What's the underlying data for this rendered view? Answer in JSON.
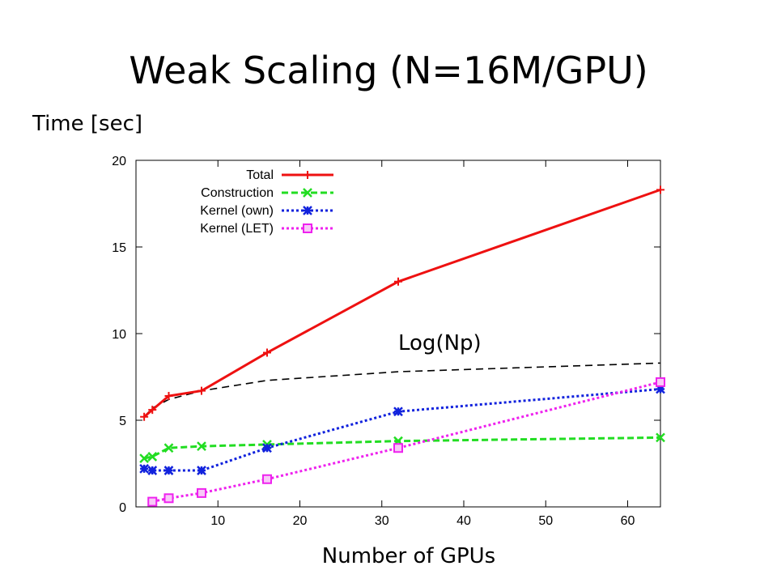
{
  "title": "Weak Scaling (N=16M/GPU)",
  "chart_data": {
    "type": "line",
    "ylabel": "Time [sec]",
    "xlabel": "Number of GPUs",
    "xlim": [
      0,
      64
    ],
    "ylim": [
      0,
      20
    ],
    "x_ticks": [
      10,
      20,
      30,
      40,
      50,
      60
    ],
    "y_ticks": [
      0,
      5,
      10,
      15,
      20
    ],
    "grid": false,
    "legend_position": "top-left",
    "series": [
      {
        "name": "Total",
        "color": "#ee1111",
        "marker": "plus",
        "dash": "solid",
        "x": [
          1,
          2,
          4,
          8,
          16,
          32,
          64
        ],
        "y": [
          5.2,
          5.6,
          6.4,
          6.7,
          8.9,
          13.0,
          18.3
        ]
      },
      {
        "name": "Construction",
        "color": "#22dd22",
        "marker": "cross",
        "dash": "dashed",
        "x": [
          1,
          2,
          4,
          8,
          16,
          32,
          64
        ],
        "y": [
          2.8,
          2.9,
          3.4,
          3.5,
          3.6,
          3.8,
          4.0
        ]
      },
      {
        "name": "Kernel (own)",
        "color": "#1122dd",
        "marker": "star",
        "dash": "dotted",
        "x": [
          1,
          2,
          4,
          8,
          16,
          32,
          64
        ],
        "y": [
          2.2,
          2.1,
          2.1,
          2.1,
          3.4,
          5.5,
          6.8
        ]
      },
      {
        "name": "Kernel (LET)",
        "color": "#ee22ee",
        "marker": "square",
        "dash": "dotted",
        "x": [
          2,
          4,
          8,
          16,
          32,
          64
        ],
        "y": [
          0.3,
          0.5,
          0.8,
          1.6,
          3.4,
          7.2
        ]
      }
    ],
    "annotation": {
      "text": "Log(Np)",
      "curve": "log",
      "color": "#000000",
      "dash": "dashed",
      "x": [
        1,
        2,
        4,
        8,
        16,
        32,
        64
      ],
      "y": [
        5.2,
        5.7,
        6.2,
        6.7,
        7.3,
        7.8,
        8.3
      ]
    }
  }
}
